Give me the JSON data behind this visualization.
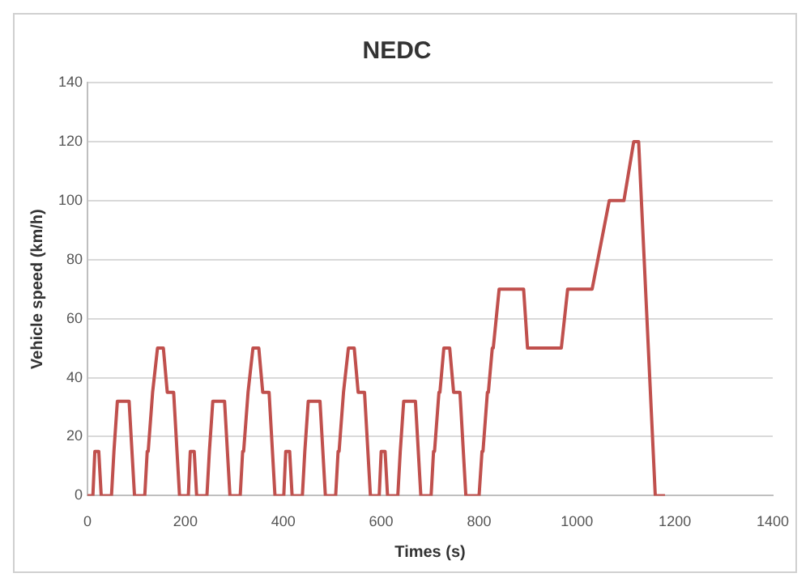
{
  "chart_data": {
    "type": "line",
    "title": "NEDC",
    "xlabel": "Times (s)",
    "ylabel": "Vehicle speed (km/h)",
    "xlim": [
      0,
      1400
    ],
    "xticks": [
      0,
      200,
      400,
      600,
      800,
      1000,
      1200,
      1400
    ],
    "ylim": [
      0,
      140
    ],
    "yticks": [
      0,
      20,
      40,
      60,
      80,
      100,
      120,
      140
    ],
    "grid": "y",
    "legend": false,
    "marker": "none",
    "line_style": "solid",
    "series": [
      {
        "color": "#c0504d",
        "x": [
          0,
          11,
          15,
          23,
          28,
          49,
          54,
          56,
          61,
          85,
          96,
          117,
          122,
          124,
          133,
          135,
          143,
          155,
          163,
          176,
          188,
          195,
          206,
          210,
          218,
          223,
          244,
          249,
          251,
          256,
          280,
          291,
          312,
          317,
          319,
          328,
          330,
          338,
          350,
          358,
          371,
          383,
          390,
          401,
          405,
          413,
          418,
          439,
          444,
          446,
          451,
          475,
          486,
          507,
          512,
          514,
          523,
          525,
          533,
          545,
          553,
          566,
          578,
          585,
          596,
          600,
          608,
          613,
          634,
          639,
          641,
          646,
          670,
          681,
          702,
          707,
          709,
          718,
          720,
          728,
          740,
          748,
          761,
          773,
          780,
          800,
          806,
          808,
          817,
          819,
          827,
          829,
          841,
          891,
          899,
          968,
          981,
          1031,
          1066,
          1096,
          1116,
          1126,
          1160,
          1180
        ],
        "values": [
          0,
          0,
          15,
          15,
          0,
          0,
          15,
          15,
          32,
          32,
          0,
          0,
          15,
          15,
          35,
          35,
          50,
          50,
          35,
          35,
          0,
          0,
          0,
          15,
          15,
          0,
          0,
          15,
          15,
          32,
          32,
          0,
          0,
          15,
          15,
          35,
          35,
          50,
          50,
          35,
          35,
          0,
          0,
          0,
          15,
          15,
          0,
          0,
          15,
          15,
          32,
          32,
          0,
          0,
          15,
          15,
          35,
          35,
          50,
          50,
          35,
          35,
          0,
          0,
          0,
          15,
          15,
          0,
          0,
          15,
          15,
          32,
          32,
          0,
          0,
          15,
          15,
          35,
          35,
          50,
          50,
          35,
          35,
          0,
          0,
          0,
          15,
          15,
          35,
          35,
          50,
          50,
          70,
          70,
          50,
          50,
          70,
          70,
          100,
          100,
          120,
          120,
          0,
          0
        ]
      }
    ]
  }
}
